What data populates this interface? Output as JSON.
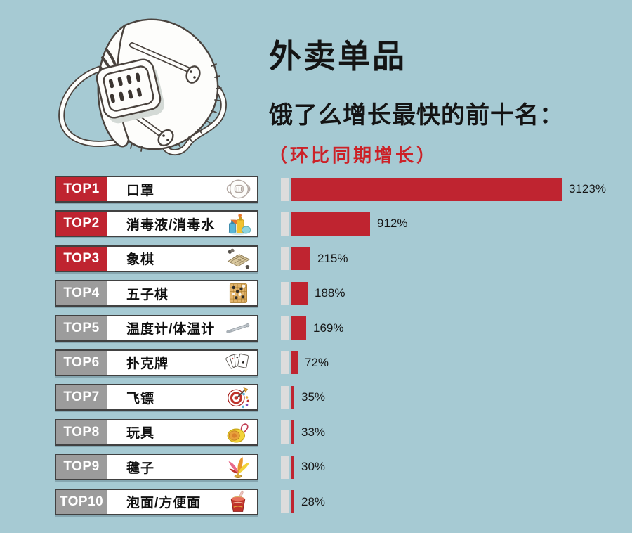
{
  "page": {
    "background_color": "#a6cad3"
  },
  "header": {
    "title": "外卖单品",
    "subtitle": "饿了么增长最快的前十名：",
    "note": "（环比同期增长）",
    "note_color": "#cc2127"
  },
  "illustration": {
    "name": "face-mask-illustration"
  },
  "chart_data": {
    "type": "bar",
    "orientation": "horizontal",
    "title": "外卖单品 饿了么增长最快的前十名（环比同期增长）",
    "unit": "%",
    "grid": false,
    "legend": false,
    "value_range": [
      0,
      3123
    ],
    "bar_color": "#bf2430",
    "bar_base_color": "#dcdcdc",
    "badge_red": "#bf2430",
    "badge_gray": "#9c9c9c",
    "categories": [
      "口罩",
      "消毒液/消毒水",
      "象棋",
      "五子棋",
      "温度计/体温计",
      "扑克牌",
      "飞镖",
      "玩具",
      "毽子",
      "泡面/方便面"
    ],
    "values": [
      3123,
      912,
      215,
      188,
      169,
      72,
      35,
      33,
      30,
      28
    ],
    "rows": [
      {
        "rank": "TOP1",
        "label": "口罩",
        "value": 3123,
        "value_label": "3123%",
        "icon": "mask-icon",
        "badge_color": "#bf2430"
      },
      {
        "rank": "TOP2",
        "label": "消毒液/消毒水",
        "value": 912,
        "value_label": "912%",
        "icon": "disinfectant-icon",
        "badge_color": "#bf2430"
      },
      {
        "rank": "TOP3",
        "label": "象棋",
        "value": 215,
        "value_label": "215%",
        "icon": "chess-icon",
        "badge_color": "#bf2430"
      },
      {
        "rank": "TOP4",
        "label": "五子棋",
        "value": 188,
        "value_label": "188%",
        "icon": "gomoku-icon",
        "badge_color": "#9c9c9c"
      },
      {
        "rank": "TOP5",
        "label": "温度计/体温计",
        "value": 169,
        "value_label": "169%",
        "icon": "thermometer-icon",
        "badge_color": "#9c9c9c"
      },
      {
        "rank": "TOP6",
        "label": "扑克牌",
        "value": 72,
        "value_label": "72%",
        "icon": "cards-icon",
        "badge_color": "#9c9c9c"
      },
      {
        "rank": "TOP7",
        "label": "飞镖",
        "value": 35,
        "value_label": "35%",
        "icon": "darts-icon",
        "badge_color": "#9c9c9c"
      },
      {
        "rank": "TOP8",
        "label": "玩具",
        "value": 33,
        "value_label": "33%",
        "icon": "toy-icon",
        "badge_color": "#9c9c9c"
      },
      {
        "rank": "TOP9",
        "label": "毽子",
        "value": 30,
        "value_label": "30%",
        "icon": "shuttlecock-icon",
        "badge_color": "#9c9c9c"
      },
      {
        "rank": "TOP10",
        "label": "泡面/方便面",
        "value": 28,
        "value_label": "28%",
        "icon": "noodles-icon",
        "badge_color": "#9c9c9c"
      }
    ]
  }
}
